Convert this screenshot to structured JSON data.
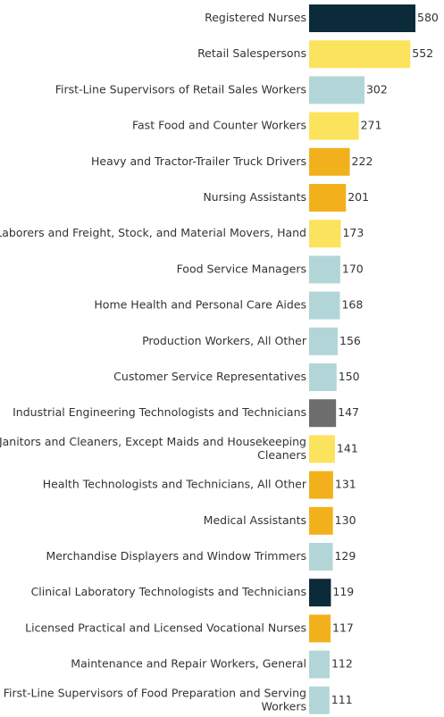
{
  "chart_data": {
    "type": "bar",
    "orientation": "horizontal",
    "title": "",
    "xlabel": "",
    "ylabel": "",
    "xlim": [
      0,
      580
    ],
    "grid": false,
    "legend": "none",
    "categories": [
      [
        "Registered Nurses"
      ],
      [
        "Retail Salespersons"
      ],
      [
        "First-Line Supervisors of Retail Sales Workers"
      ],
      [
        "Fast Food and Counter Workers"
      ],
      [
        "Heavy and Tractor-Trailer Truck Drivers"
      ],
      [
        "Nursing Assistants"
      ],
      [
        "Laborers and Freight, Stock, and Material Movers, Hand"
      ],
      [
        "Food Service Managers"
      ],
      [
        "Home Health and Personal Care Aides"
      ],
      [
        "Production Workers, All Other"
      ],
      [
        "Customer Service Representatives"
      ],
      [
        "Industrial Engineering Technologists and Technicians"
      ],
      [
        "Janitors and Cleaners, Except Maids and Housekeeping",
        "Cleaners"
      ],
      [
        "Health Technologists and Technicians, All Other"
      ],
      [
        "Medical Assistants"
      ],
      [
        "Merchandise Displayers and Window Trimmers"
      ],
      [
        "Clinical Laboratory Technologists and Technicians"
      ],
      [
        "Licensed Practical and Licensed Vocational Nurses"
      ],
      [
        "Maintenance and Repair Workers, General"
      ],
      [
        "First-Line Supervisors of Food Preparation and Serving",
        "Workers"
      ]
    ],
    "values": [
      580,
      552,
      302,
      271,
      222,
      201,
      173,
      170,
      168,
      156,
      150,
      147,
      141,
      131,
      130,
      129,
      119,
      117,
      112,
      111
    ],
    "colors": [
      "#0b2b3a",
      "#fce35e",
      "#b2d6d8",
      "#fce35e",
      "#f2b11c",
      "#f2b11c",
      "#fce35e",
      "#b2d6d8",
      "#b2d6d8",
      "#b2d6d8",
      "#b2d6d8",
      "#6d6d6d",
      "#fce35e",
      "#f2b11c",
      "#f2b11c",
      "#b2d6d8",
      "#0b2b3a",
      "#f2b11c",
      "#b2d6d8",
      "#b2d6d8"
    ]
  }
}
